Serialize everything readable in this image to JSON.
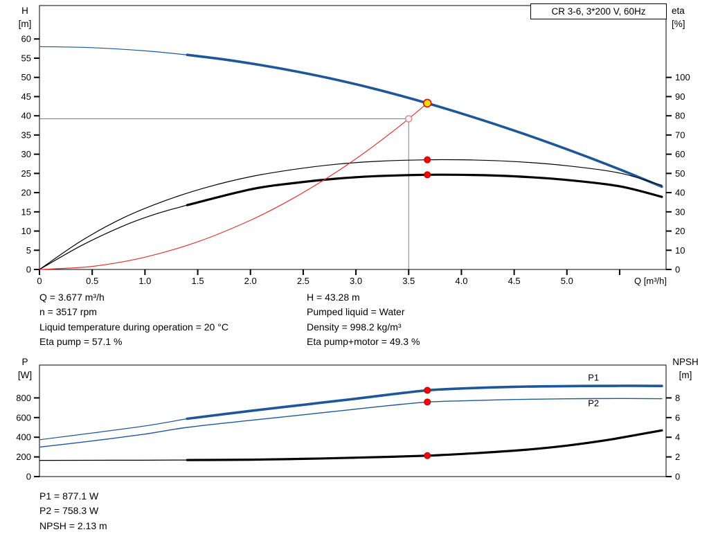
{
  "chart_data": [
    {
      "id": "hq-eta",
      "type": "line",
      "title": "CR 3-6, 3*200 V, 60Hz",
      "x": {
        "label": "Q [m³/h]",
        "range": [
          0,
          5.94
        ],
        "ticks": [
          0,
          0.5,
          1,
          1.5,
          2,
          2.5,
          3,
          3.5,
          4,
          4.5,
          5,
          5.5
        ],
        "tick_labels": [
          "0",
          "0.5",
          "1.0",
          "1.5",
          "2.0",
          "2.5",
          "3.0",
          "3.5",
          "4.0",
          "4.5",
          "5.0",
          ""
        ]
      },
      "y_left": {
        "label": [
          "H",
          "[m]"
        ],
        "range": [
          0,
          68.7
        ],
        "ticks": [
          0,
          5,
          10,
          15,
          20,
          25,
          30,
          35,
          40,
          45,
          50,
          55,
          60
        ]
      },
      "y_right": {
        "label": [
          "eta",
          "[%]"
        ],
        "range": [
          0,
          137.4
        ],
        "ticks": [
          0,
          10,
          20,
          30,
          40,
          50,
          60,
          70,
          80,
          90,
          100
        ]
      },
      "series": [
        {
          "name": "pump-curve-lead",
          "axis": "left",
          "color": "#1e5799",
          "width": 1.2,
          "points": [
            [
              0,
              58
            ],
            [
              0.5,
              57.73
            ],
            [
              1,
              56.91
            ],
            [
              1.4,
              55.87
            ]
          ]
        },
        {
          "name": "pump-curve",
          "axis": "left",
          "color": "#1e5799",
          "width": 3.6,
          "points": [
            [
              1.4,
              55.87
            ],
            [
              1.75,
              54.67
            ],
            [
              2.1,
              53.2
            ],
            [
              2.45,
              51.47
            ],
            [
              2.8,
              49.47
            ],
            [
              3.15,
              47.2
            ],
            [
              3.45,
              45.04
            ],
            [
              3.677,
              43.28
            ],
            [
              4,
              40.61
            ],
            [
              4.4,
              37.08
            ],
            [
              4.8,
              33.29
            ],
            [
              5.2,
              29.24
            ],
            [
              5.55,
              25.49
            ],
            [
              5.9,
              21.54
            ]
          ]
        },
        {
          "name": "eta-pump",
          "axis": "right",
          "color": "#000000",
          "width": 1.2,
          "points": [
            [
              0,
              0
            ],
            [
              0.4,
              15
            ],
            [
              0.8,
              27
            ],
            [
              1.2,
              36
            ],
            [
              1.6,
              43
            ],
            [
              2,
              48.3
            ],
            [
              2.4,
              52
            ],
            [
              2.8,
              54.7
            ],
            [
              3.2,
              56.3
            ],
            [
              3.677,
              57.1
            ],
            [
              4.1,
              57
            ],
            [
              4.5,
              56.2
            ],
            [
              5,
              54
            ],
            [
              5.5,
              50.2
            ],
            [
              5.9,
              43.8
            ]
          ]
        },
        {
          "name": "eta-pump-motor-lead",
          "axis": "right",
          "color": "#000000",
          "width": 1.2,
          "points": [
            [
              0,
              0
            ],
            [
              0.4,
              12.5
            ],
            [
              0.8,
              22.8
            ],
            [
              1.1,
              28.8
            ],
            [
              1.4,
              33.5
            ]
          ]
        },
        {
          "name": "eta-pump-motor",
          "axis": "right",
          "color": "#000000",
          "width": 3.2,
          "points": [
            [
              1.4,
              33.5
            ],
            [
              2,
              41.7
            ],
            [
              2.4,
              44.9
            ],
            [
              2.8,
              47.2
            ],
            [
              3.2,
              48.6
            ],
            [
              3.677,
              49.3
            ],
            [
              4.1,
              49.2
            ],
            [
              4.5,
              48.5
            ],
            [
              5,
              46.6
            ],
            [
              5.5,
              43.3
            ],
            [
              5.9,
              37.8
            ]
          ]
        },
        {
          "name": "system-curve",
          "axis": "left",
          "color": "#e63232",
          "width": 1.2,
          "points": [
            [
              0,
              0
            ],
            [
              0.5,
              0.8
            ],
            [
              1,
              3.2
            ],
            [
              1.5,
              7.2
            ],
            [
              2,
              12.81
            ],
            [
              2.4,
              18.44
            ],
            [
              2.8,
              25.1
            ],
            [
              3.1,
              30.77
            ],
            [
              3.35,
              35.93
            ],
            [
              3.5,
              39.22
            ],
            [
              3.677,
              43.28
            ]
          ]
        }
      ],
      "crosshair": {
        "x": 3.5,
        "y": 39.22,
        "axis": "left",
        "color": "#7d7d7d"
      },
      "markers": [
        {
          "name": "requested-duty-point",
          "x": 3.5,
          "y": 39.22,
          "axis": "left",
          "r": 4.5,
          "fill": "#ffffff",
          "stroke": "#f08080",
          "sw": 1.5
        },
        {
          "name": "eta-pump-point",
          "x": 3.677,
          "y": 57.1,
          "axis": "right",
          "r": 4.5,
          "fill": "#fb0000",
          "stroke": "#c00000",
          "sw": 1
        },
        {
          "name": "eta-pump-motor-point",
          "x": 3.677,
          "y": 49.3,
          "axis": "right",
          "r": 4.5,
          "fill": "#fb0000",
          "stroke": "#c00000",
          "sw": 1
        },
        {
          "name": "duty-point",
          "x": 3.677,
          "y": 43.28,
          "axis": "left",
          "r": 5.5,
          "fill": "#ffd800",
          "stroke": "#e30613",
          "sw": 1.6
        }
      ],
      "curve_labels": []
    },
    {
      "id": "power-npsh",
      "type": "line",
      "x": {
        "range": [
          0,
          5.94
        ],
        "ticks": [],
        "tick_labels": []
      },
      "y_left": {
        "label": [
          "P",
          "[W]"
        ],
        "range": [
          0,
          1134
        ],
        "ticks": [
          0,
          200,
          400,
          600,
          800
        ]
      },
      "y_right": {
        "label": [
          "NPSH",
          "[m]"
        ],
        "range": [
          0,
          11.34
        ],
        "ticks": [
          0,
          2,
          4,
          6,
          8
        ]
      },
      "series": [
        {
          "name": "p1-lead",
          "axis": "left",
          "color": "#1e5799",
          "width": 1.2,
          "points": [
            [
              0,
              375
            ],
            [
              0.5,
              443
            ],
            [
              1,
              515
            ],
            [
              1.4,
              588
            ]
          ]
        },
        {
          "name": "p1",
          "axis": "left",
          "color": "#1e5799",
          "width": 3.6,
          "points": [
            [
              1.4,
              588
            ],
            [
              2,
              668
            ],
            [
              2.5,
              730
            ],
            [
              3,
              792
            ],
            [
              3.35,
              838
            ],
            [
              3.677,
              877
            ],
            [
              4,
              896
            ],
            [
              4.5,
              913
            ],
            [
              5,
              920
            ],
            [
              5.5,
              923
            ],
            [
              5.9,
              921
            ]
          ]
        },
        {
          "name": "p2",
          "axis": "left",
          "color": "#1e5799",
          "width": 1.4,
          "points": [
            [
              0,
              300
            ],
            [
              0.5,
              362
            ],
            [
              1,
              432
            ],
            [
              1.4,
              500
            ],
            [
              2,
              572
            ],
            [
              2.5,
              628
            ],
            [
              3,
              686
            ],
            [
              3.35,
              726
            ],
            [
              3.677,
              758
            ],
            [
              4,
              770
            ],
            [
              4.5,
              784
            ],
            [
              5,
              791
            ],
            [
              5.5,
              794
            ],
            [
              5.9,
              792
            ]
          ]
        },
        {
          "name": "npsh-lead",
          "axis": "right",
          "color": "#000000",
          "width": 1.2,
          "points": [
            [
              0,
              1.65
            ],
            [
              0.7,
              1.66
            ],
            [
              1.4,
              1.68
            ]
          ]
        },
        {
          "name": "npsh",
          "axis": "right",
          "color": "#000000",
          "width": 3.2,
          "points": [
            [
              1.4,
              1.68
            ],
            [
              2,
              1.72
            ],
            [
              2.5,
              1.8
            ],
            [
              3,
              1.92
            ],
            [
              3.677,
              2.13
            ],
            [
              4.2,
              2.42
            ],
            [
              4.6,
              2.72
            ],
            [
              5,
              3.15
            ],
            [
              5.4,
              3.75
            ],
            [
              5.9,
              4.7
            ]
          ]
        }
      ],
      "markers": [
        {
          "name": "p1-point",
          "x": 3.677,
          "y": 877.1,
          "axis": "left",
          "r": 4.5,
          "fill": "#fb0000",
          "stroke": "#c00000",
          "sw": 1
        },
        {
          "name": "p2-point",
          "x": 3.677,
          "y": 758.3,
          "axis": "left",
          "r": 4.5,
          "fill": "#fb0000",
          "stroke": "#c00000",
          "sw": 1
        },
        {
          "name": "npsh-point",
          "x": 3.677,
          "y": 2.13,
          "axis": "right",
          "r": 4.5,
          "fill": "#fb0000",
          "stroke": "#c00000",
          "sw": 1
        }
      ],
      "curve_labels": [
        {
          "text": "P1",
          "x": 5.2,
          "y": 975,
          "axis": "left",
          "color": "#1e5799"
        },
        {
          "text": "P2",
          "x": 5.2,
          "y": 715,
          "axis": "left",
          "color": "#1e5799"
        }
      ]
    }
  ],
  "info": {
    "duty_left": [
      "Q = 3.677 m³/h",
      "n = 3517 rpm",
      "Liquid temperature during operation = 20 °C",
      "Eta pump = 57.1 %"
    ],
    "duty_right": [
      "H = 43.28 m",
      "Pumped liquid = Water",
      "Density = 998.2 kg/m³",
      "Eta pump+motor = 49.3 %"
    ],
    "power": [
      "P1 = 877.1 W",
      "P2 = 758.3 W",
      "NPSH = 2.13 m"
    ]
  }
}
